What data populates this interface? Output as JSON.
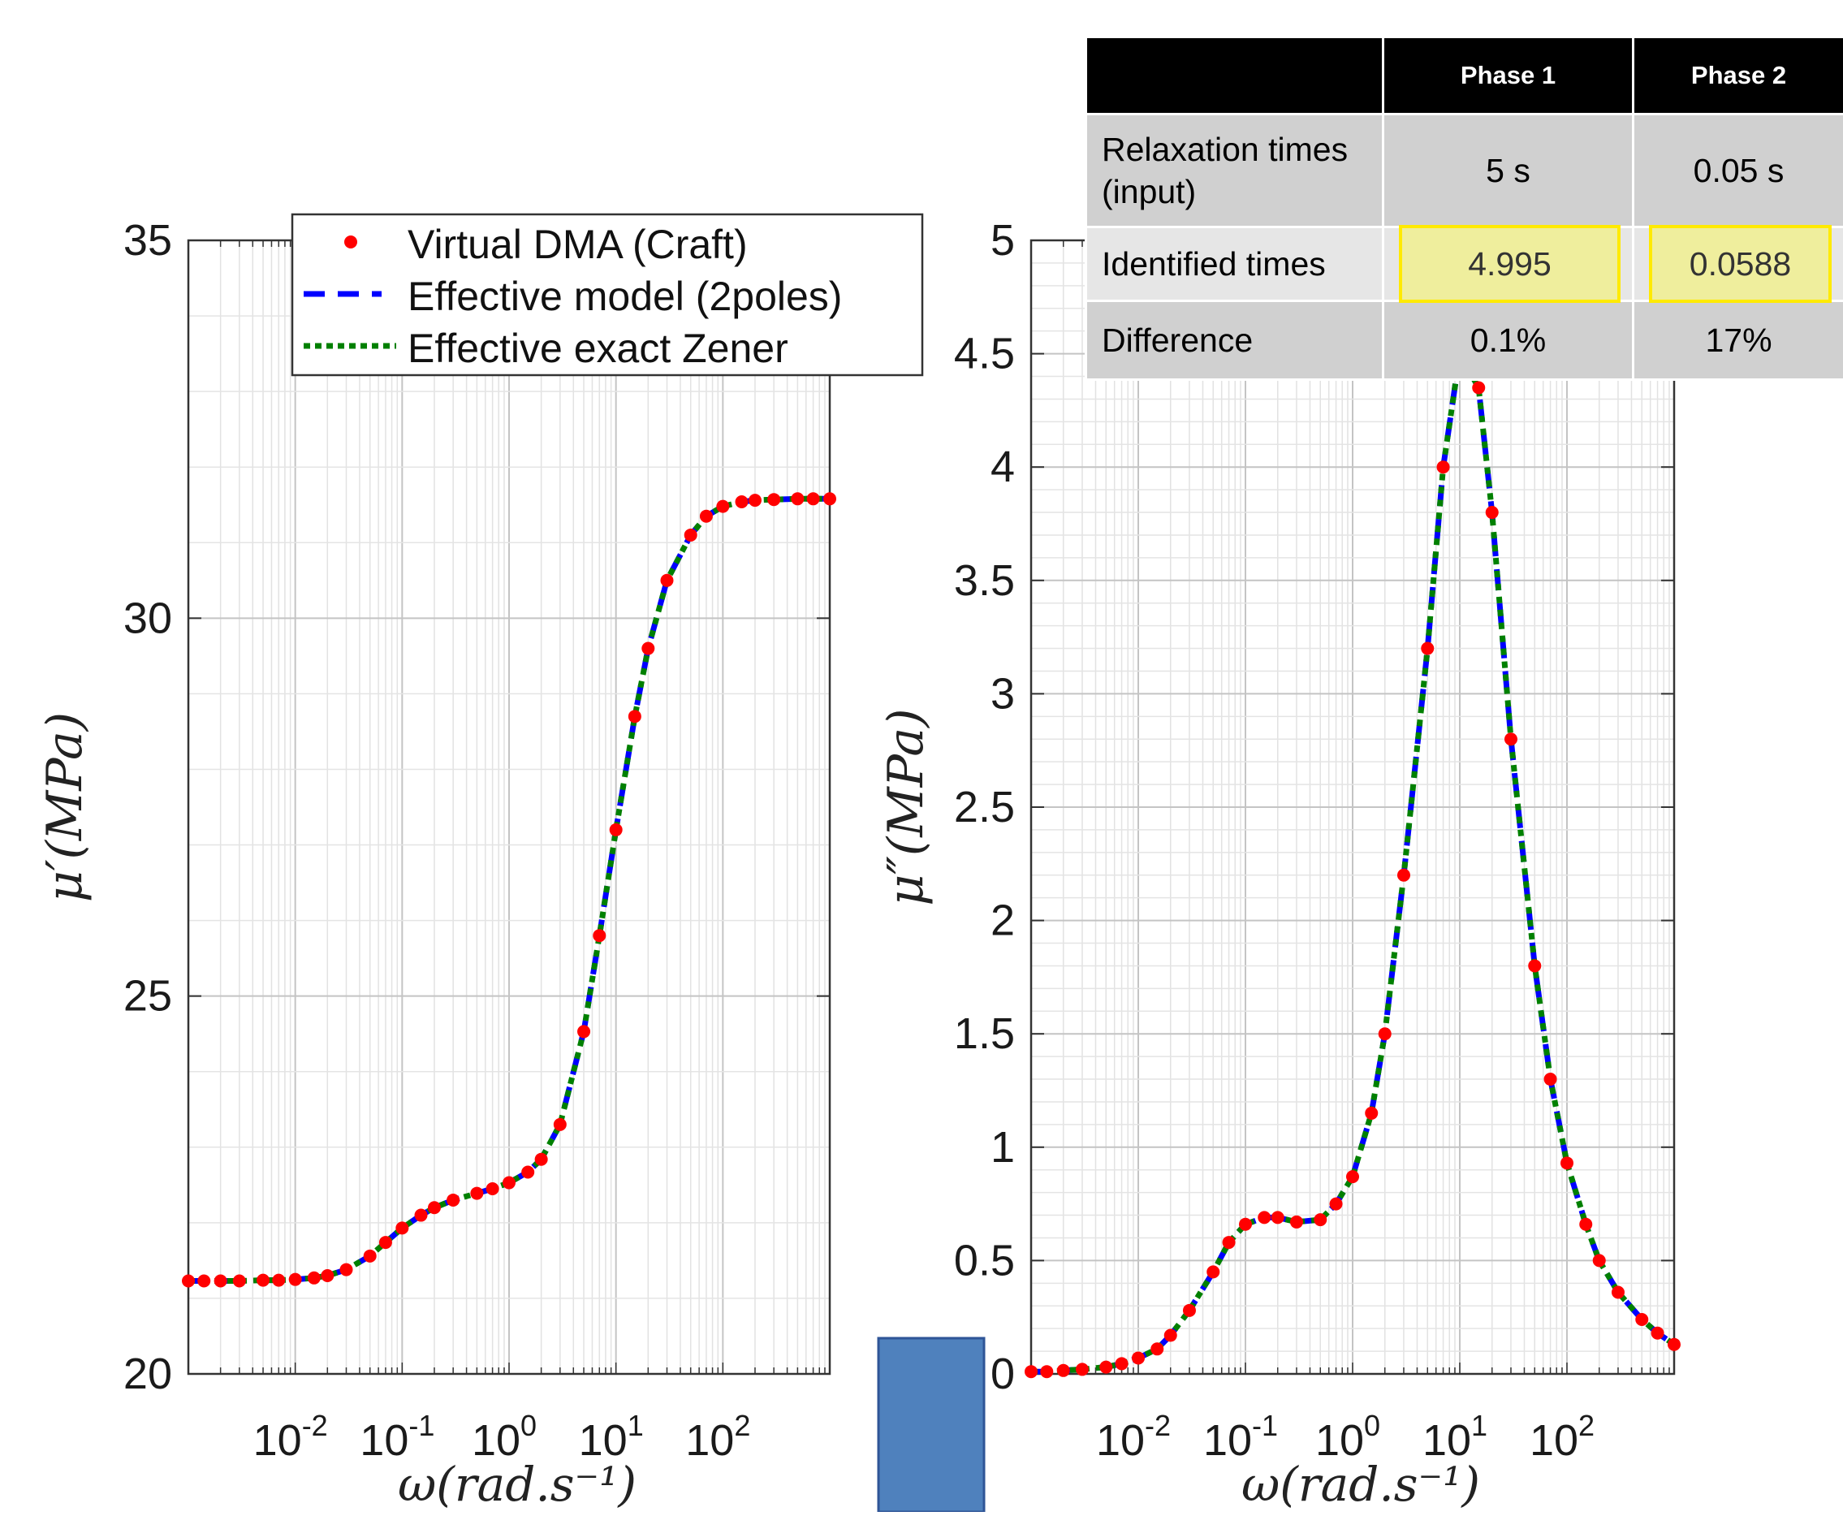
{
  "chart_data": [
    {
      "type": "line",
      "ylabel": "μ′(MPa)",
      "xlabel": "ω(rad.s⁻¹)",
      "xscale": "log",
      "xlim": [
        0.001,
        1000
      ],
      "ylim": [
        20,
        35
      ],
      "yticks": [
        "20",
        "25",
        "30",
        "35"
      ],
      "xticks": [
        {
          "base": "10",
          "exp": "-2"
        },
        {
          "base": "10",
          "exp": "-1"
        },
        {
          "base": "10",
          "exp": "0"
        },
        {
          "base": "10",
          "exp": "1"
        },
        {
          "base": "10",
          "exp": "2"
        }
      ],
      "grid": true,
      "legend_position": "top-right",
      "series": [
        {
          "name": "Virtual DMA (Craft)",
          "style": "dots",
          "color": "#ff0000",
          "x": [
            0.001,
            0.0014,
            0.002,
            0.003,
            0.005,
            0.007,
            0.01,
            0.015,
            0.02,
            0.03,
            0.05,
            0.07,
            0.1,
            0.15,
            0.2,
            0.3,
            0.5,
            0.7,
            1,
            1.5,
            2,
            3,
            5,
            7,
            10,
            15,
            20,
            30,
            50,
            70,
            100,
            150,
            200,
            300,
            500,
            700,
            1000
          ],
          "y": [
            21.23,
            21.23,
            21.23,
            21.23,
            21.24,
            21.24,
            21.25,
            21.27,
            21.3,
            21.38,
            21.56,
            21.74,
            21.93,
            22.1,
            22.2,
            22.3,
            22.39,
            22.45,
            22.53,
            22.67,
            22.84,
            23.3,
            24.53,
            25.8,
            27.2,
            28.7,
            29.6,
            30.5,
            31.1,
            31.35,
            31.48,
            31.54,
            31.56,
            31.57,
            31.58,
            31.58,
            31.58
          ]
        },
        {
          "name": "Effective model (2poles)",
          "style": "dashed",
          "color": "#0000ff"
        },
        {
          "name": "Effective exact Zener",
          "style": "dotted",
          "color": "#008000"
        }
      ]
    },
    {
      "type": "line",
      "ylabel": "μ″(MPa)",
      "xlabel": "ω(rad.s⁻¹)",
      "xscale": "log",
      "xlim": [
        0.001,
        1000
      ],
      "ylim": [
        0,
        5
      ],
      "yticks": [
        "0",
        "0.5",
        "1",
        "1.5",
        "2",
        "2.5",
        "3",
        "3.5",
        "4",
        "4.5",
        "5"
      ],
      "xticks": [
        {
          "base": "10",
          "exp": "-2"
        },
        {
          "base": "10",
          "exp": "-1"
        },
        {
          "base": "10",
          "exp": "0"
        },
        {
          "base": "10",
          "exp": "1"
        },
        {
          "base": "10",
          "exp": "2"
        }
      ],
      "grid": true,
      "series": [
        {
          "name": "Virtual DMA (Craft)",
          "style": "dots",
          "color": "#ff0000",
          "x": [
            0.001,
            0.0014,
            0.002,
            0.003,
            0.005,
            0.007,
            0.01,
            0.015,
            0.02,
            0.03,
            0.05,
            0.07,
            0.1,
            0.15,
            0.2,
            0.3,
            0.5,
            0.7,
            1,
            1.5,
            2,
            3,
            5,
            7,
            10,
            15,
            20,
            30,
            50,
            70,
            100,
            150,
            200,
            300,
            500,
            700,
            1000
          ],
          "y": [
            0.01,
            0.01,
            0.015,
            0.02,
            0.03,
            0.045,
            0.07,
            0.11,
            0.17,
            0.28,
            0.45,
            0.58,
            0.66,
            0.69,
            0.69,
            0.67,
            0.68,
            0.75,
            0.87,
            1.15,
            1.5,
            2.2,
            3.2,
            4.0,
            4.5,
            4.35,
            3.8,
            2.8,
            1.8,
            1.3,
            0.93,
            0.66,
            0.5,
            0.36,
            0.24,
            0.18,
            0.13
          ]
        },
        {
          "name": "Effective model (2poles)",
          "style": "dashed",
          "color": "#0000ff"
        },
        {
          "name": "Effective exact Zener",
          "style": "dotted",
          "color": "#008000"
        }
      ]
    }
  ],
  "table": {
    "headers": [
      "",
      "Phase 1",
      "Phase 2"
    ],
    "rows": [
      {
        "label": "Relaxation times (input)",
        "values": [
          "5 s",
          "0.05 s"
        ]
      },
      {
        "label": "Identified times",
        "values": [
          "4.995",
          "0.0588"
        ]
      },
      {
        "label": "Difference",
        "values": [
          "0.1%",
          "17%"
        ]
      }
    ]
  },
  "colors": {
    "marker": "#ff0000",
    "dashed": "#0000ff",
    "dotted": "#008000",
    "highlight_border": "#ffea00",
    "blue_block": "#4f81bd"
  }
}
